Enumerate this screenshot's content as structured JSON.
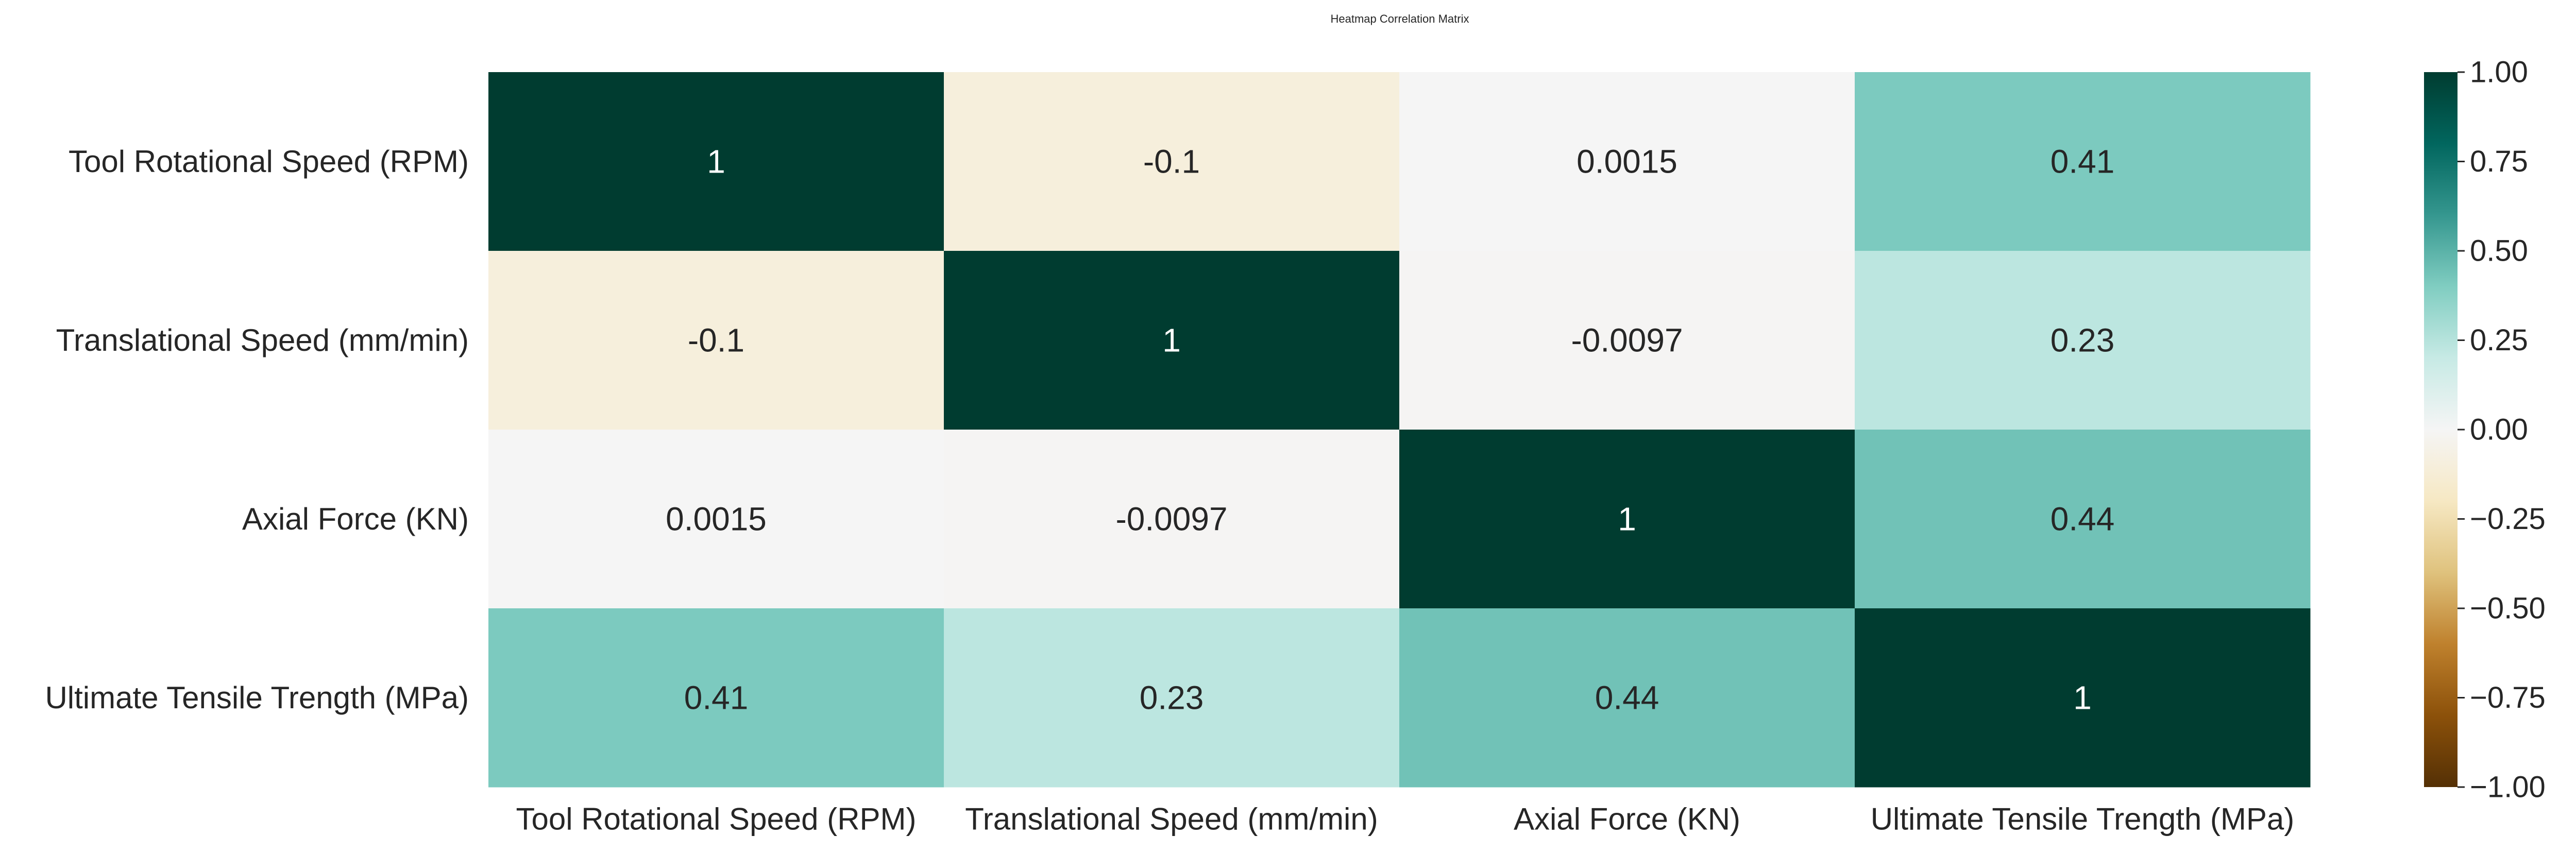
{
  "chart_data": {
    "type": "heatmap",
    "title": "Heatmap Correlation Matrix",
    "xlabel": "",
    "ylabel": "",
    "row_labels": [
      "Tool Rotational Speed (RPM)",
      "Translational Speed (mm/min)",
      "Axial Force (KN)",
      "Ultimate Tensile Trength (MPa)"
    ],
    "col_labels": [
      "Tool Rotational Speed (RPM)",
      "Translational Speed (mm/min)",
      "Axial Force (KN)",
      "Ultimate Tensile Trength (MPa)"
    ],
    "values": [
      [
        1,
        -0.1,
        0.0015,
        0.41
      ],
      [
        -0.1,
        1,
        -0.0097,
        0.23
      ],
      [
        0.0015,
        -0.0097,
        1,
        0.44
      ],
      [
        0.41,
        0.23,
        0.44,
        1
      ]
    ],
    "annotations": [
      [
        "1",
        "-0.1",
        "0.0015",
        "0.41"
      ],
      [
        "-0.1",
        "1",
        "-0.0097",
        "0.23"
      ],
      [
        "0.0015",
        "-0.0097",
        "1",
        "0.44"
      ],
      [
        "0.41",
        "0.23",
        "0.44",
        "1"
      ]
    ],
    "vmin": -1,
    "vmax": 1,
    "colormap": "BrBG",
    "colorbar_ticks": [
      "1.00",
      "0.75",
      "0.50",
      "0.25",
      "0.00",
      "−0.25",
      "−0.50",
      "−0.75",
      "−1.00"
    ],
    "colorbar_tick_values": [
      1,
      0.75,
      0.5,
      0.25,
      0,
      -0.25,
      -0.5,
      -0.75,
      -1
    ],
    "grid": false
  }
}
